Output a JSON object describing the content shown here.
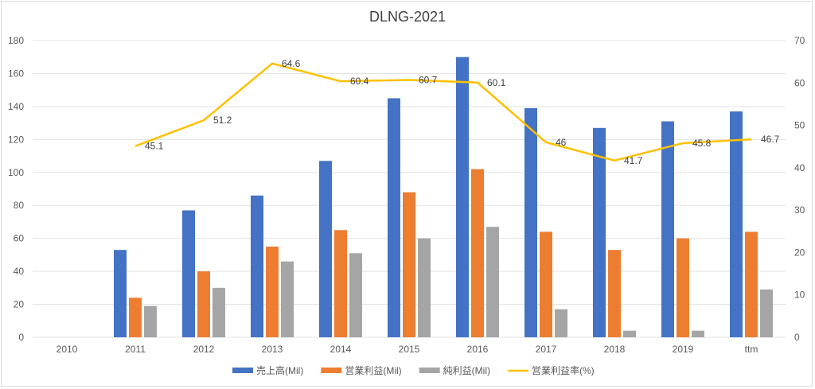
{
  "chart_data": {
    "type": "bar",
    "title": "DLNG-2021",
    "categories": [
      "2010",
      "2011",
      "2012",
      "2013",
      "2014",
      "2015",
      "2016",
      "2017",
      "2018",
      "2019",
      "ttm"
    ],
    "series": [
      {
        "name": "売上高(Mil)",
        "type": "bar",
        "axis": "left",
        "color": "#4472C4",
        "values": [
          null,
          53,
          77,
          86,
          107,
          145,
          170,
          139,
          127,
          131,
          137
        ]
      },
      {
        "name": "営業利益(Mil)",
        "type": "bar",
        "axis": "left",
        "color": "#ED7D31",
        "values": [
          null,
          24,
          40,
          55,
          65,
          88,
          102,
          64,
          53,
          60,
          64
        ]
      },
      {
        "name": "純利益(Mil)",
        "type": "bar",
        "axis": "left",
        "color": "#A5A5A5",
        "values": [
          null,
          19,
          30,
          46,
          51,
          60,
          67,
          17,
          4,
          4,
          29
        ]
      },
      {
        "name": "営業利益率(%)",
        "type": "line",
        "axis": "right",
        "color": "#FFC000",
        "values": [
          null,
          45.1,
          51.2,
          64.6,
          60.4,
          60.7,
          60.1,
          46,
          41.7,
          45.8,
          46.7
        ],
        "labels": [
          "",
          "45.1",
          "51.2",
          "64.6",
          "60.4",
          "60.7",
          "60.1",
          "46",
          "41.7",
          "45.8",
          "46.7"
        ]
      }
    ],
    "y_left": {
      "range": [
        0,
        180
      ],
      "ticks": [
        "0",
        "20",
        "40",
        "60",
        "80",
        "100",
        "120",
        "140",
        "160",
        "180"
      ]
    },
    "y_right": {
      "range": [
        0,
        70
      ],
      "ticks": [
        "0",
        "10",
        "20",
        "30",
        "40",
        "50",
        "60",
        "70"
      ]
    },
    "grid": true,
    "legend": "bottom"
  }
}
